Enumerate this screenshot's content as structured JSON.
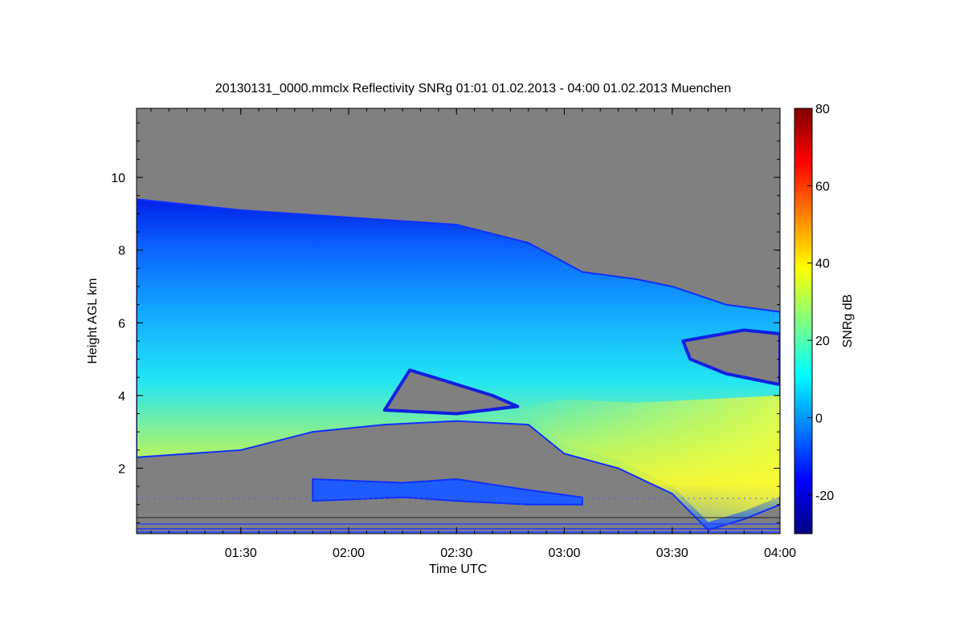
{
  "chart_data": {
    "type": "heatmap",
    "title": "20130131_0000.mmclx Reflectivity SNRg   01:01 01.02.2013 - 04:00 01.02.2013 Muenchen",
    "xlabel": "Time UTC",
    "ylabel": "Height AGL km",
    "x_range": [
      "01:01",
      "04:00"
    ],
    "x_ticks": [
      "01:30",
      "02:00",
      "02:30",
      "03:00",
      "03:30",
      "04:00"
    ],
    "y_range": [
      0.2,
      11.9
    ],
    "y_ticks": [
      2,
      4,
      6,
      8,
      10
    ],
    "colorbar": {
      "label": "SNRg dB",
      "range": [
        -30,
        80
      ],
      "ticks": [
        -20,
        0,
        20,
        40,
        60,
        80
      ],
      "colormap": "jet"
    },
    "background_color": "#808080",
    "echo_regions": [
      {
        "name": "main cloud layer",
        "top": [
          [
            "01:01",
            9.4
          ],
          [
            "01:30",
            9.1
          ],
          [
            "02:00",
            8.9
          ],
          [
            "02:30",
            8.7
          ],
          [
            "02:50",
            8.2
          ],
          [
            "03:05",
            7.4
          ],
          [
            "03:20",
            7.2
          ],
          [
            "03:30",
            7.0
          ],
          [
            "03:45",
            6.5
          ],
          [
            "04:00",
            6.3
          ]
        ],
        "base": [
          [
            "01:01",
            2.3
          ],
          [
            "01:30",
            2.5
          ],
          [
            "01:50",
            3.0
          ],
          [
            "02:10",
            3.2
          ],
          [
            "02:30",
            3.3
          ],
          [
            "02:50",
            3.2
          ],
          [
            "03:00",
            2.4
          ],
          [
            "03:15",
            2.0
          ],
          [
            "03:30",
            1.3
          ],
          [
            "03:40",
            0.3
          ],
          [
            "03:50",
            0.6
          ],
          [
            "04:00",
            1.0
          ]
        ]
      },
      {
        "name": "low drizzle layer",
        "top": [
          [
            "01:50",
            1.7
          ],
          [
            "02:15",
            1.6
          ],
          [
            "02:30",
            1.7
          ],
          [
            "02:50",
            1.4
          ],
          [
            "03:05",
            1.2
          ]
        ],
        "base": [
          [
            "01:50",
            1.1
          ],
          [
            "02:15",
            1.2
          ],
          [
            "02:30",
            1.1
          ],
          [
            "02:50",
            1.0
          ],
          [
            "03:05",
            1.0
          ]
        ]
      }
    ],
    "clear_pockets": [
      {
        "name": "mid-level gap",
        "points": [
          [
            "02:10",
            3.6
          ],
          [
            "02:17",
            4.7
          ],
          [
            "02:27",
            4.4
          ],
          [
            "02:40",
            4.0
          ],
          [
            "02:47",
            3.7
          ],
          [
            "02:30",
            3.5
          ]
        ]
      },
      {
        "name": "upper gap east",
        "points": [
          [
            "03:33",
            5.5
          ],
          [
            "03:50",
            5.8
          ],
          [
            "04:00",
            5.7
          ],
          [
            "04:00",
            4.3
          ],
          [
            "03:45",
            4.6
          ],
          [
            "03:35",
            5.0
          ]
        ]
      }
    ]
  }
}
